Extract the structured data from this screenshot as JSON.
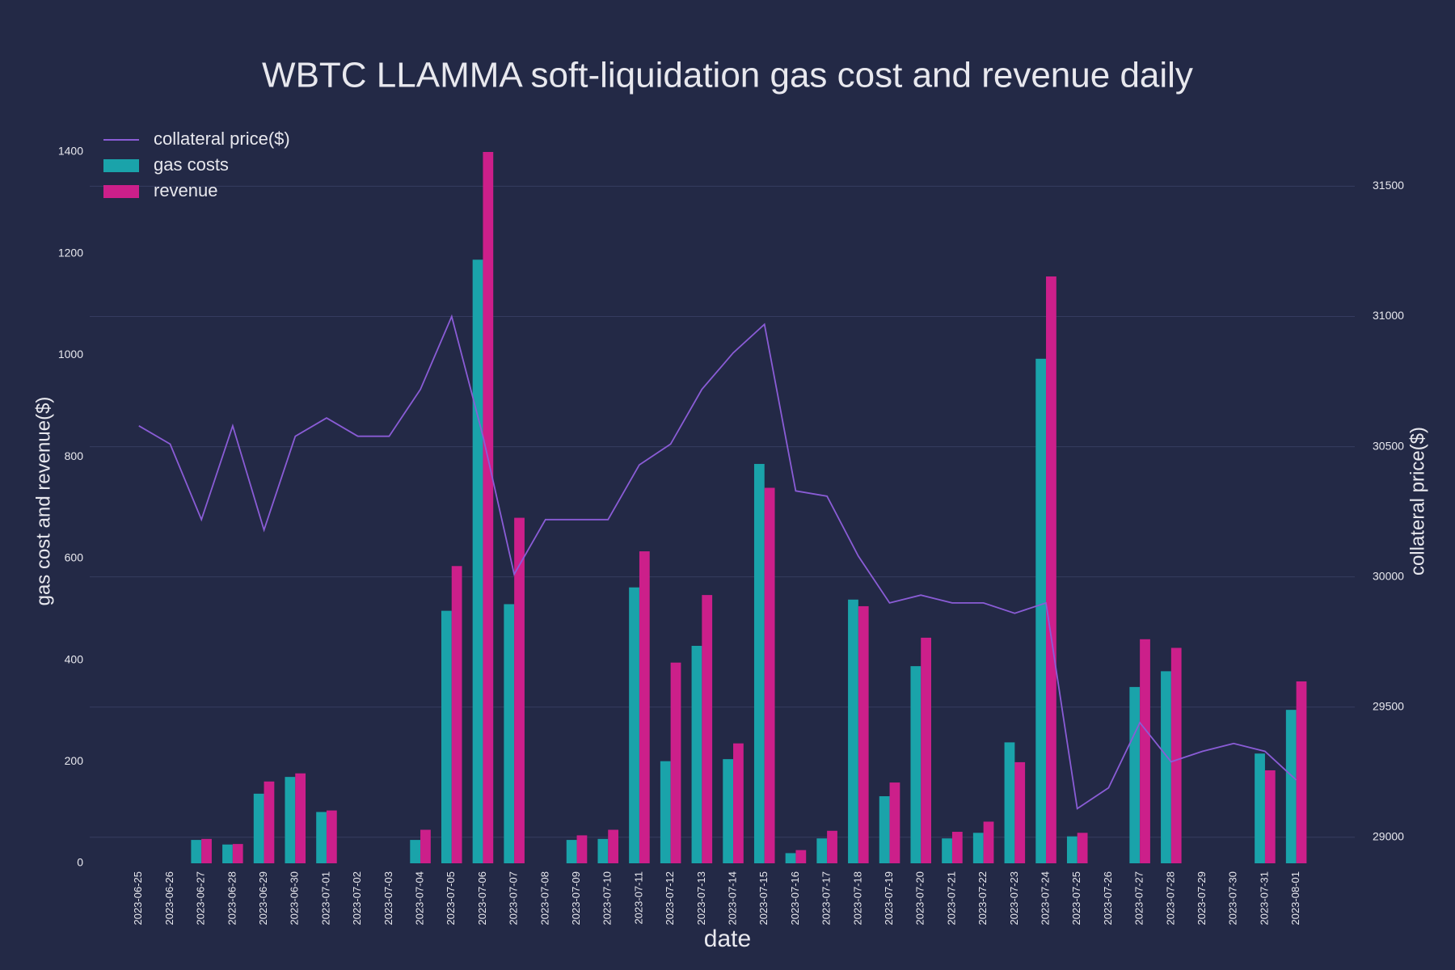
{
  "chart_data": {
    "type": "bar",
    "title": "WBTC LLAMMA soft-liquidation gas cost and revenue daily",
    "x_label": "date",
    "y_label": "gas cost and revenue($)",
    "y2_label": "collateral price($)",
    "categories": [
      "2023-06-25",
      "2023-06-26",
      "2023-06-27",
      "2023-06-28",
      "2023-06-29",
      "2023-06-30",
      "2023-07-01",
      "2023-07-02",
      "2023-07-03",
      "2023-07-04",
      "2023-07-05",
      "2023-07-06",
      "2023-07-07",
      "2023-07-08",
      "2023-07-09",
      "2023-07-10",
      "2023-07-11",
      "2023-07-12",
      "2023-07-13",
      "2023-07-14",
      "2023-07-15",
      "2023-07-16",
      "2023-07-17",
      "2023-07-18",
      "2023-07-19",
      "2023-07-20",
      "2023-07-21",
      "2023-07-22",
      "2023-07-23",
      "2023-07-24",
      "2023-07-25",
      "2023-07-26",
      "2023-07-27",
      "2023-07-28",
      "2023-07-29",
      "2023-07-30",
      "2023-07-31",
      "2023-08-01"
    ],
    "series": [
      {
        "name": "collateral price($)",
        "type": "line",
        "axis": "y2",
        "color": "#8a5cd6",
        "values": [
          30580,
          30510,
          30220,
          30580,
          30180,
          30540,
          30610,
          30540,
          30540,
          30720,
          31000,
          30540,
          30010,
          30220,
          30220,
          30220,
          30430,
          30510,
          30720,
          30860,
          30970,
          30330,
          30310,
          30080,
          29900,
          29930,
          29900,
          29900,
          29860,
          29900,
          29110,
          29190,
          29440,
          29290,
          29330,
          29360,
          29330,
          29220
        ]
      },
      {
        "name": "gas costs",
        "type": "bar",
        "color": "#1aa3aa",
        "values": [
          0,
          0,
          46,
          37,
          137,
          170,
          101,
          0,
          0,
          46,
          497,
          1188,
          510,
          0,
          46,
          48,
          543,
          201,
          428,
          205,
          786,
          20,
          49,
          519,
          132,
          388,
          49,
          60,
          238,
          993,
          53,
          0,
          347,
          378,
          0,
          0,
          216,
          302
        ]
      },
      {
        "name": "revenue",
        "type": "bar",
        "color": "#cc1f8a",
        "values": [
          0,
          0,
          48,
          38,
          161,
          177,
          104,
          0,
          0,
          66,
          585,
          1400,
          680,
          0,
          55,
          66,
          614,
          395,
          528,
          236,
          739,
          26,
          64,
          506,
          159,
          444,
          62,
          82,
          199,
          1155,
          60,
          0,
          441,
          424,
          0,
          0,
          183,
          358
        ]
      }
    ],
    "ylim": [
      0,
      1435
    ],
    "yticks": [
      0,
      200,
      400,
      600,
      800,
      1000,
      1200,
      1400
    ],
    "y2lim": [
      28900,
      31700
    ],
    "y2ticks": [
      29000,
      29500,
      30000,
      30500,
      31000,
      31500
    ],
    "grid": true,
    "legend": "top-left"
  }
}
